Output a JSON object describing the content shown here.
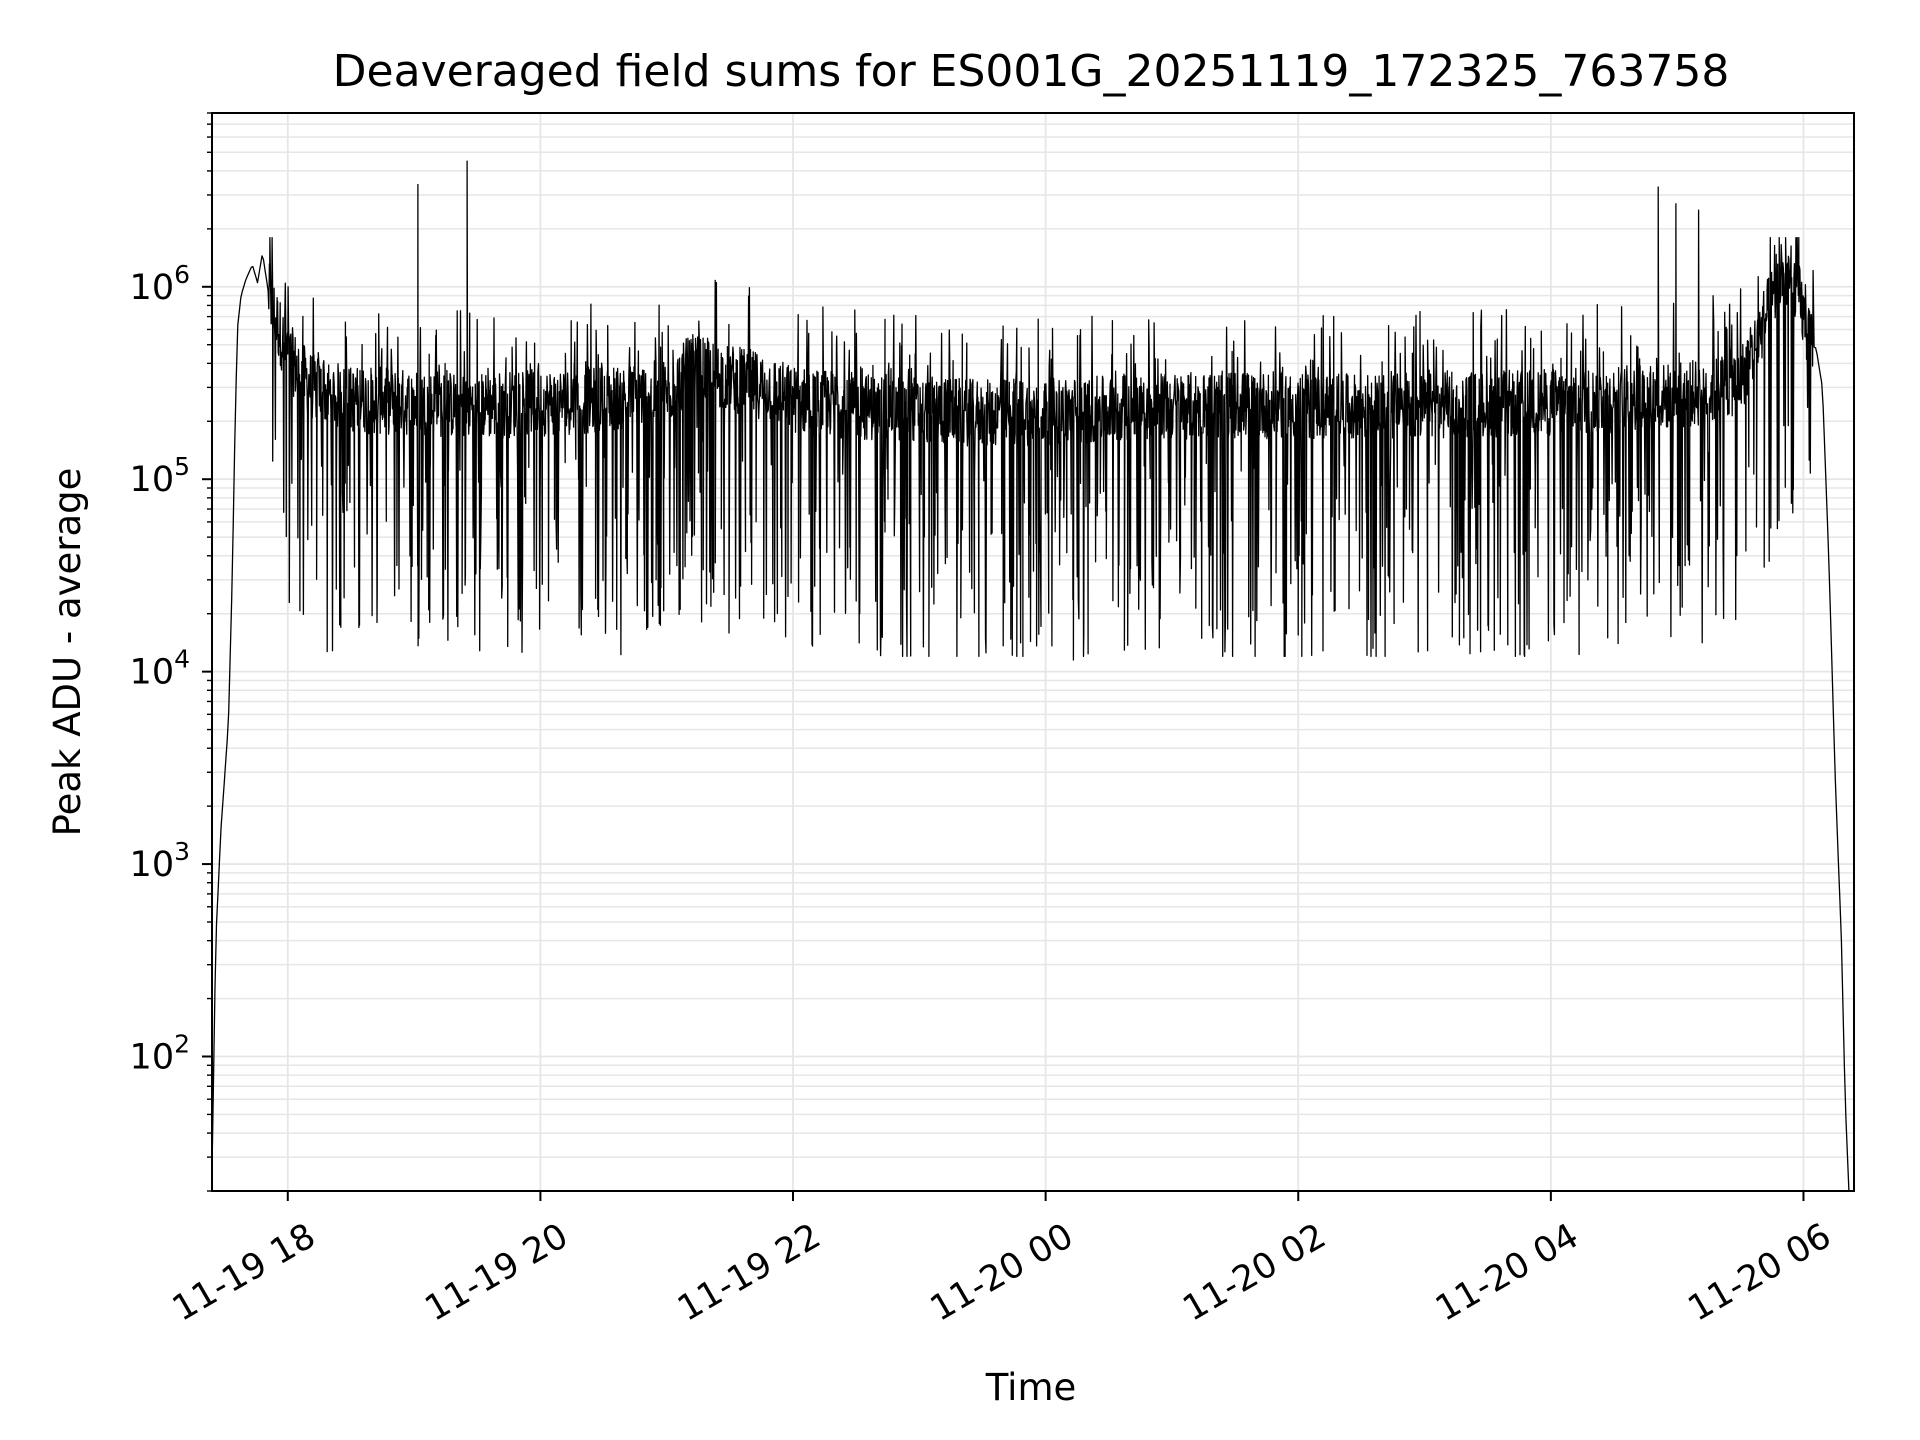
{
  "chart_data": {
    "type": "line",
    "title": "Deaveraged field sums for ES001G_20251119_172325_763758",
    "xlabel": "Time",
    "ylabel": "Peak ADU - average",
    "x_unit": "hours since 11-19 00:00",
    "xlim": [
      17.4,
      30.4
    ],
    "yscale": "log",
    "ylim": [
      20,
      8000000
    ],
    "grid": true,
    "x_ticks": [
      {
        "value": 18,
        "label": "11-19 18"
      },
      {
        "value": 20,
        "label": "11-19 20"
      },
      {
        "value": 22,
        "label": "11-19 22"
      },
      {
        "value": 24,
        "label": "11-20 00"
      },
      {
        "value": 26,
        "label": "11-20 02"
      },
      {
        "value": 28,
        "label": "11-20 04"
      },
      {
        "value": 30,
        "label": "11-20 06"
      }
    ],
    "y_ticks": [
      {
        "value": 100,
        "base": "10",
        "exp": "2"
      },
      {
        "value": 1000,
        "base": "10",
        "exp": "3"
      },
      {
        "value": 10000,
        "base": "10",
        "exp": "4"
      },
      {
        "value": 100000,
        "base": "10",
        "exp": "5"
      },
      {
        "value": 1000000,
        "base": "10",
        "exp": "6"
      }
    ],
    "series": [
      {
        "name": "Deaveraged field sums",
        "color": "#000000",
        "points": [
          [
            17.4,
            25
          ],
          [
            17.43,
            400
          ],
          [
            17.47,
            1500
          ],
          [
            17.5,
            2800
          ],
          [
            17.53,
            5500
          ],
          [
            17.56,
            30000
          ],
          [
            17.58,
            150000
          ],
          [
            17.6,
            600000
          ],
          [
            17.63,
            900000
          ],
          [
            17.67,
            1100000
          ],
          [
            17.72,
            1300000
          ],
          [
            17.76,
            1050000
          ],
          [
            17.8,
            1500000
          ],
          [
            17.85,
            900000
          ],
          [
            17.9,
            700000
          ],
          [
            17.95,
            550000
          ],
          [
            18.0,
            450000
          ],
          [
            18.1,
            350000
          ],
          [
            18.2,
            300000
          ],
          [
            18.3,
            280000
          ],
          [
            18.5,
            260000
          ],
          [
            19.0,
            250000
          ],
          [
            19.5,
            240000
          ],
          [
            20.0,
            250000
          ],
          [
            20.5,
            260000
          ],
          [
            21.0,
            280000
          ],
          [
            21.2,
            380000
          ],
          [
            21.4,
            350000
          ],
          [
            21.8,
            300000
          ],
          [
            22.0,
            260000
          ],
          [
            22.5,
            240000
          ],
          [
            23.0,
            230000
          ],
          [
            23.5,
            220000
          ],
          [
            24.0,
            225000
          ],
          [
            24.5,
            230000
          ],
          [
            25.0,
            240000
          ],
          [
            25.5,
            245000
          ],
          [
            26.0,
            240000
          ],
          [
            26.5,
            235000
          ],
          [
            27.0,
            240000
          ],
          [
            27.5,
            245000
          ],
          [
            28.0,
            250000
          ],
          [
            28.5,
            260000
          ],
          [
            29.0,
            270000
          ],
          [
            29.3,
            290000
          ],
          [
            29.5,
            330000
          ],
          [
            29.6,
            450000
          ],
          [
            29.7,
            700000
          ],
          [
            29.8,
            1000000
          ],
          [
            29.88,
            1150000
          ],
          [
            29.95,
            1000000
          ],
          [
            30.0,
            700000
          ],
          [
            30.05,
            500000
          ],
          [
            30.1,
            480000
          ],
          [
            30.15,
            300000
          ],
          [
            30.2,
            40000
          ],
          [
            30.25,
            3000
          ],
          [
            30.3,
            400
          ],
          [
            30.33,
            60
          ],
          [
            30.36,
            20
          ]
        ],
        "noise": {
          "x_range": [
            17.85,
            30.08
          ],
          "samples_per_hour": 230,
          "dip_min": 12000,
          "spike_max": 1800000
        }
      }
    ],
    "annotated_spikes": [
      [
        19.03,
        3400000
      ],
      [
        19.42,
        4500000
      ],
      [
        28.85,
        3300000
      ],
      [
        28.99,
        2700000
      ],
      [
        29.17,
        2500000
      ]
    ],
    "annotated_dips": [
      [
        18.42,
        17000
      ],
      [
        20.85,
        17000
      ],
      [
        23.82,
        12000
      ],
      [
        24.22,
        11500
      ],
      [
        26.0,
        15500
      ],
      [
        28.45,
        15000
      ]
    ]
  }
}
